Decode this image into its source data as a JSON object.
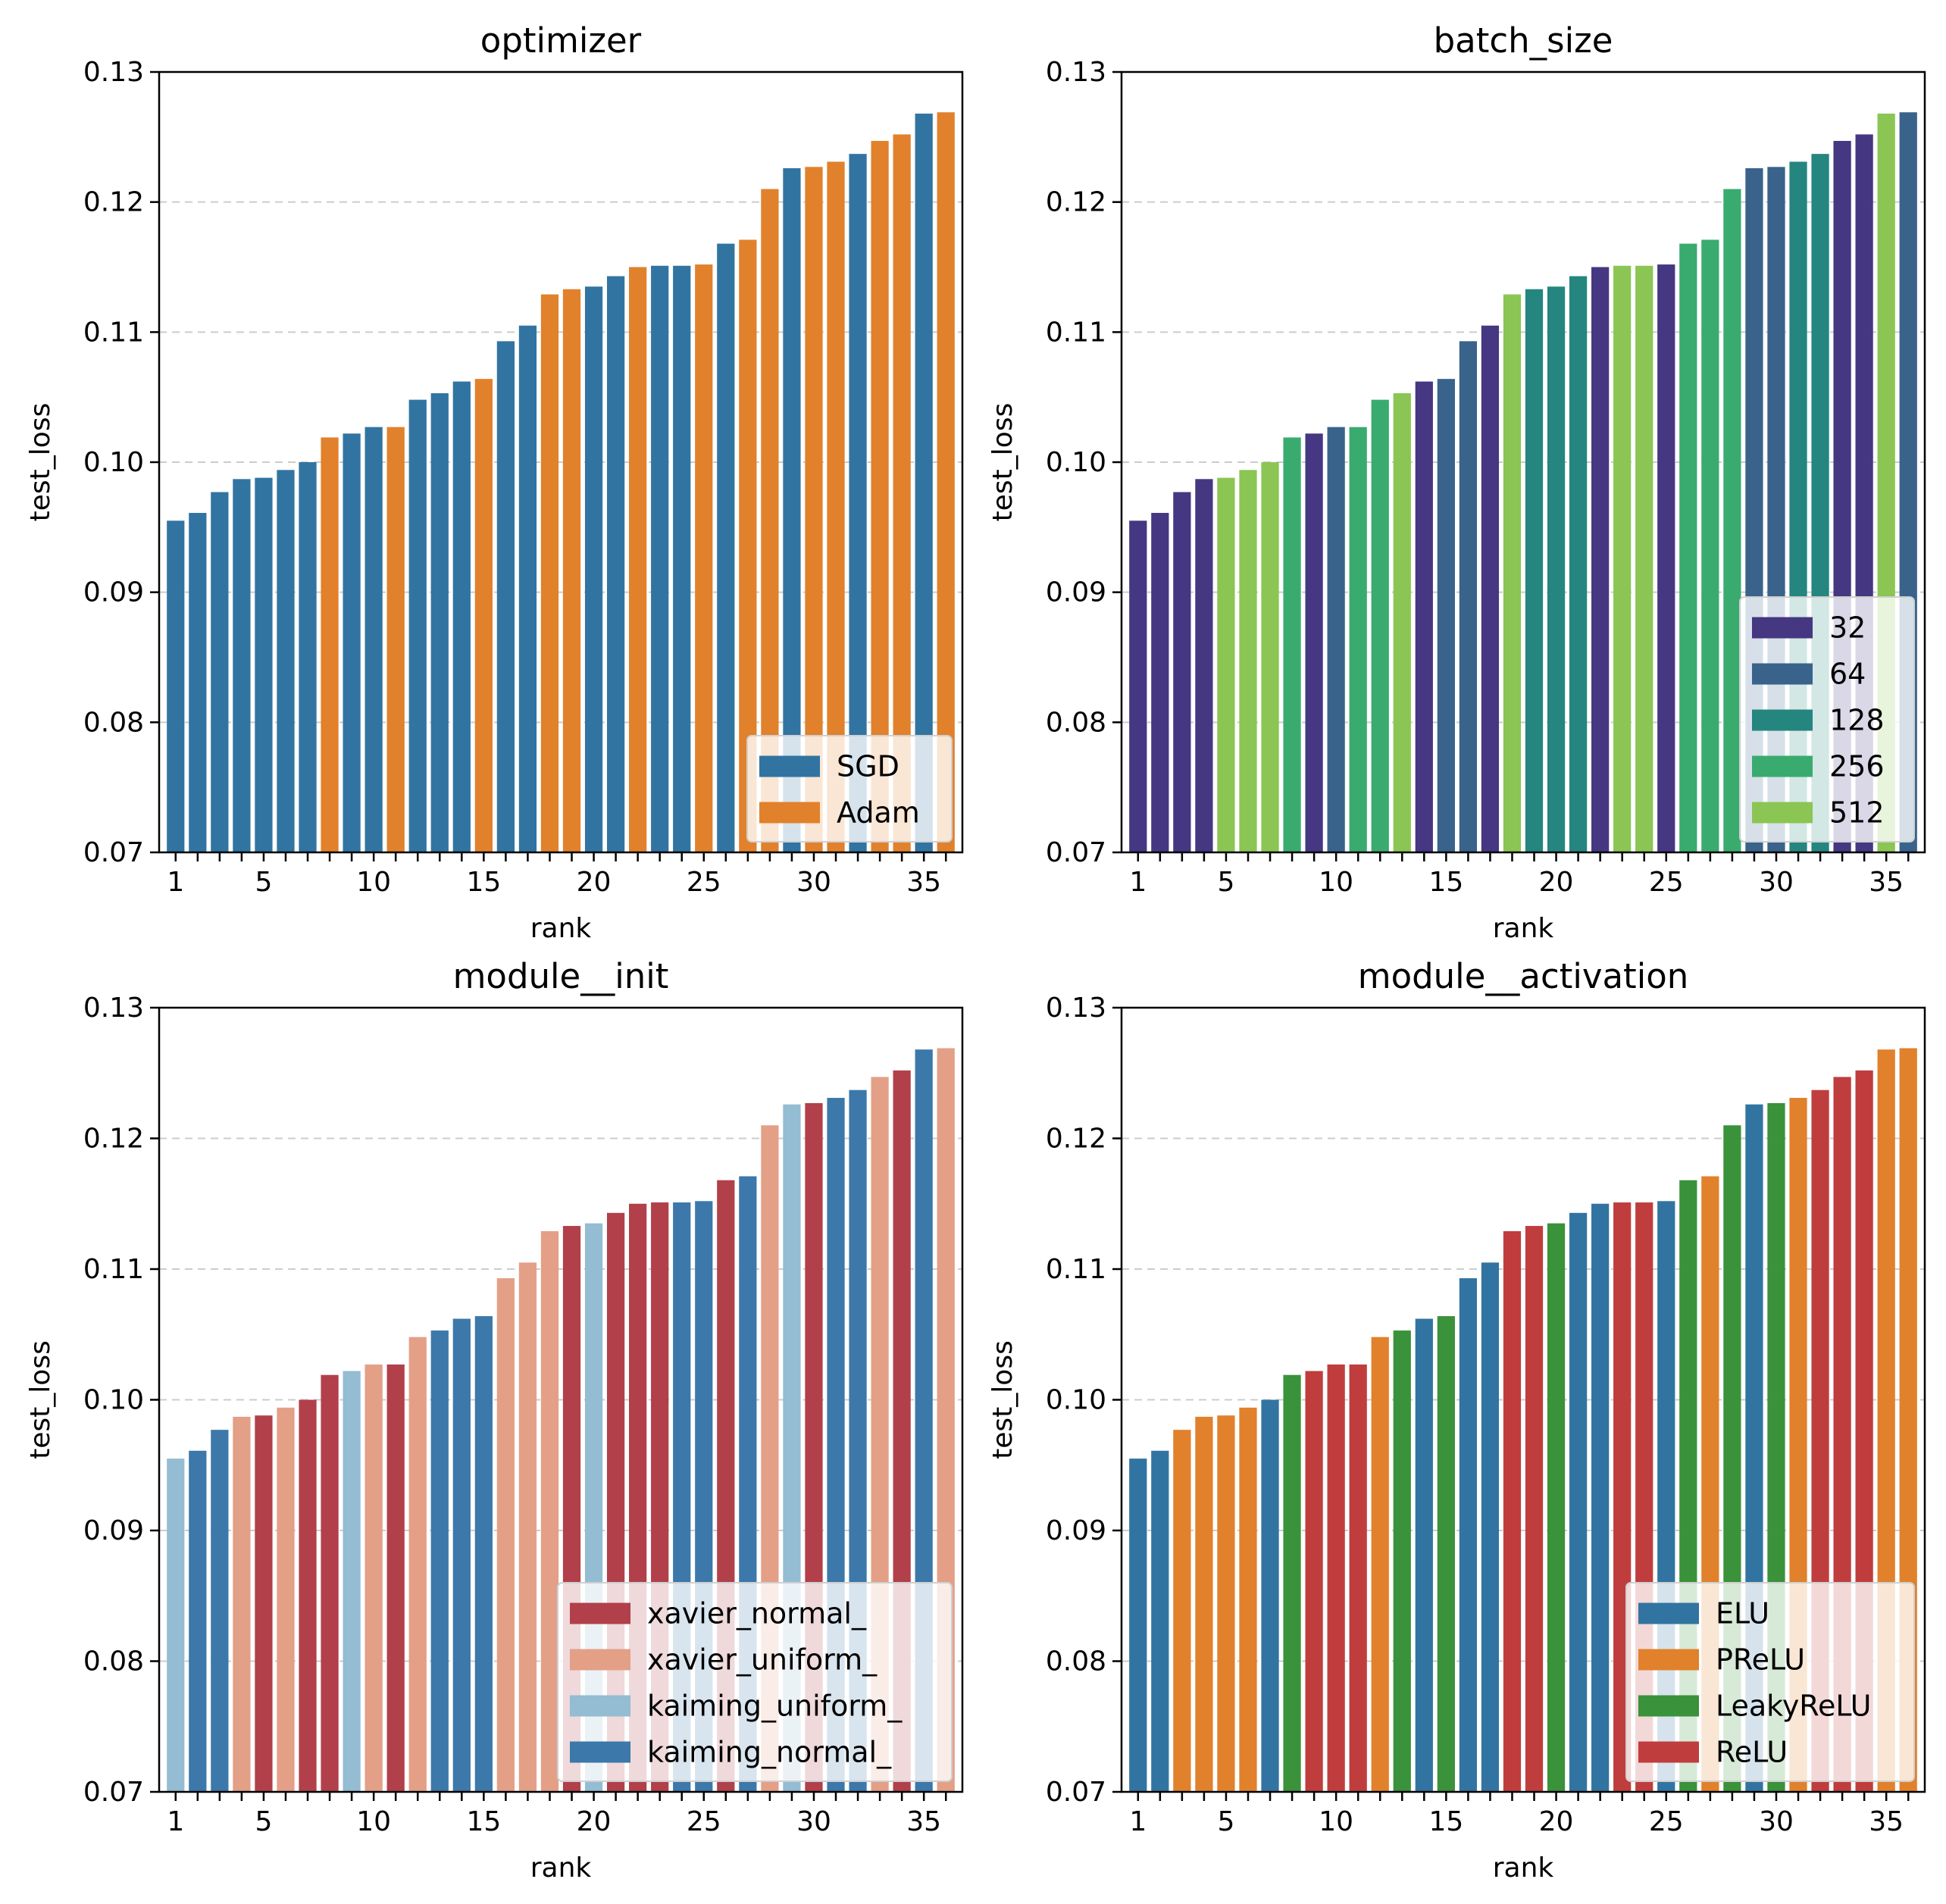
{
  "chart_data": [
    {
      "type": "bar",
      "title": "optimizer",
      "xlabel": "rank",
      "ylabel": "test_loss",
      "ylim": [
        0.07,
        0.13
      ],
      "yticks": [
        "0.07",
        "0.08",
        "0.09",
        "0.10",
        "0.11",
        "0.12",
        "0.13"
      ],
      "xtick_labels": [
        "1",
        "5",
        "10",
        "15",
        "20",
        "25",
        "30",
        "35"
      ],
      "grid": "y dashed",
      "legend_position": "lower right",
      "series": [
        {
          "name": "SGD",
          "color": "#3274a1"
        },
        {
          "name": "Adam",
          "color": "#e1812c"
        }
      ],
      "ranks": [
        1,
        2,
        3,
        4,
        5,
        6,
        7,
        8,
        9,
        10,
        11,
        12,
        13,
        14,
        15,
        16,
        17,
        18,
        19,
        20,
        21,
        22,
        23,
        24,
        25,
        26,
        27,
        28,
        29,
        30,
        31,
        32,
        33,
        34,
        35,
        36
      ],
      "values": [
        0.0955,
        0.0961,
        0.0977,
        0.0987,
        0.0988,
        0.0994,
        0.1,
        0.1019,
        0.1022,
        0.1027,
        0.1027,
        0.1048,
        0.1053,
        0.1062,
        0.1064,
        0.1093,
        0.1105,
        0.1129,
        0.1133,
        0.1135,
        0.1143,
        0.115,
        0.1151,
        0.1151,
        0.1152,
        0.1168,
        0.1171,
        0.121,
        0.1226,
        0.1227,
        0.1231,
        0.1237,
        0.1247,
        0.1252,
        0.1268,
        0.1269
      ],
      "groups": [
        "SGD",
        "SGD",
        "SGD",
        "SGD",
        "SGD",
        "SGD",
        "SGD",
        "Adam",
        "SGD",
        "SGD",
        "Adam",
        "SGD",
        "SGD",
        "SGD",
        "Adam",
        "SGD",
        "SGD",
        "Adam",
        "Adam",
        "SGD",
        "SGD",
        "Adam",
        "SGD",
        "SGD",
        "Adam",
        "SGD",
        "Adam",
        "Adam",
        "SGD",
        "Adam",
        "Adam",
        "SGD",
        "Adam",
        "Adam",
        "SGD",
        "Adam"
      ]
    },
    {
      "type": "bar",
      "title": "batch_size",
      "xlabel": "rank",
      "ylabel": "test_loss",
      "ylim": [
        0.07,
        0.13
      ],
      "yticks": [
        "0.07",
        "0.08",
        "0.09",
        "0.10",
        "0.11",
        "0.12",
        "0.13"
      ],
      "xtick_labels": [
        "1",
        "5",
        "10",
        "15",
        "20",
        "25",
        "30",
        "35"
      ],
      "grid": "y dashed",
      "legend_position": "lower right",
      "series": [
        {
          "name": "32",
          "color": "#453781"
        },
        {
          "name": "64",
          "color": "#39638b"
        },
        {
          "name": "128",
          "color": "#25857f"
        },
        {
          "name": "256",
          "color": "#3aab6f"
        },
        {
          "name": "512",
          "color": "#8bc553"
        }
      ],
      "ranks": [
        1,
        2,
        3,
        4,
        5,
        6,
        7,
        8,
        9,
        10,
        11,
        12,
        13,
        14,
        15,
        16,
        17,
        18,
        19,
        20,
        21,
        22,
        23,
        24,
        25,
        26,
        27,
        28,
        29,
        30,
        31,
        32,
        33,
        34,
        35,
        36
      ],
      "values": [
        0.0955,
        0.0961,
        0.0977,
        0.0987,
        0.0988,
        0.0994,
        0.1,
        0.1019,
        0.1022,
        0.1027,
        0.1027,
        0.1048,
        0.1053,
        0.1062,
        0.1064,
        0.1093,
        0.1105,
        0.1129,
        0.1133,
        0.1135,
        0.1143,
        0.115,
        0.1151,
        0.1151,
        0.1152,
        0.1168,
        0.1171,
        0.121,
        0.1226,
        0.1227,
        0.1231,
        0.1237,
        0.1247,
        0.1252,
        0.1268,
        0.1269
      ],
      "groups": [
        "32",
        "32",
        "32",
        "32",
        "512",
        "512",
        "512",
        "256",
        "32",
        "64",
        "256",
        "256",
        "512",
        "32",
        "64",
        "64",
        "32",
        "512",
        "128",
        "128",
        "128",
        "32",
        "512",
        "512",
        "32",
        "256",
        "256",
        "256",
        "64",
        "64",
        "128",
        "128",
        "32",
        "32",
        "512",
        "64"
      ]
    },
    {
      "type": "bar",
      "title": "module__init",
      "xlabel": "rank",
      "ylabel": "test_loss",
      "ylim": [
        0.07,
        0.13
      ],
      "yticks": [
        "0.07",
        "0.08",
        "0.09",
        "0.10",
        "0.11",
        "0.12",
        "0.13"
      ],
      "xtick_labels": [
        "1",
        "5",
        "10",
        "15",
        "20",
        "25",
        "30",
        "35"
      ],
      "grid": "y dashed",
      "legend_position": "lower right",
      "series": [
        {
          "name": "xavier_normal_",
          "color": "#b1404a"
        },
        {
          "name": "xavier_uniform_",
          "color": "#e3a087"
        },
        {
          "name": "kaiming_uniform_",
          "color": "#94bcd3"
        },
        {
          "name": "kaiming_normal_",
          "color": "#3c78aa"
        }
      ],
      "ranks": [
        1,
        2,
        3,
        4,
        5,
        6,
        7,
        8,
        9,
        10,
        11,
        12,
        13,
        14,
        15,
        16,
        17,
        18,
        19,
        20,
        21,
        22,
        23,
        24,
        25,
        26,
        27,
        28,
        29,
        30,
        31,
        32,
        33,
        34,
        35,
        36
      ],
      "values": [
        0.0955,
        0.0961,
        0.0977,
        0.0987,
        0.0988,
        0.0994,
        0.1,
        0.1019,
        0.1022,
        0.1027,
        0.1027,
        0.1048,
        0.1053,
        0.1062,
        0.1064,
        0.1093,
        0.1105,
        0.1129,
        0.1133,
        0.1135,
        0.1143,
        0.115,
        0.1151,
        0.1151,
        0.1152,
        0.1168,
        0.1171,
        0.121,
        0.1226,
        0.1227,
        0.1231,
        0.1237,
        0.1247,
        0.1252,
        0.1268,
        0.1269
      ],
      "groups": [
        "kaiming_uniform_",
        "kaiming_normal_",
        "kaiming_normal_",
        "xavier_uniform_",
        "xavier_normal_",
        "xavier_uniform_",
        "xavier_normal_",
        "xavier_normal_",
        "kaiming_uniform_",
        "xavier_uniform_",
        "xavier_normal_",
        "xavier_uniform_",
        "kaiming_normal_",
        "kaiming_normal_",
        "kaiming_normal_",
        "xavier_uniform_",
        "xavier_uniform_",
        "xavier_uniform_",
        "xavier_normal_",
        "kaiming_uniform_",
        "xavier_normal_",
        "xavier_normal_",
        "xavier_normal_",
        "kaiming_normal_",
        "kaiming_normal_",
        "xavier_normal_",
        "kaiming_normal_",
        "xavier_uniform_",
        "kaiming_uniform_",
        "xavier_normal_",
        "kaiming_normal_",
        "kaiming_normal_",
        "xavier_uniform_",
        "xavier_normal_",
        "kaiming_normal_",
        "xavier_uniform_"
      ]
    },
    {
      "type": "bar",
      "title": "module__activation",
      "xlabel": "rank",
      "ylabel": "test_loss",
      "ylim": [
        0.07,
        0.13
      ],
      "yticks": [
        "0.07",
        "0.08",
        "0.09",
        "0.10",
        "0.11",
        "0.12",
        "0.13"
      ],
      "xtick_labels": [
        "1",
        "5",
        "10",
        "15",
        "20",
        "25",
        "30",
        "35"
      ],
      "grid": "y dashed",
      "legend_position": "lower right",
      "series": [
        {
          "name": "ELU",
          "color": "#3274a1"
        },
        {
          "name": "PReLU",
          "color": "#e1812c"
        },
        {
          "name": "LeakyReLU",
          "color": "#3a923a"
        },
        {
          "name": "ReLU",
          "color": "#c03d3e"
        }
      ],
      "ranks": [
        1,
        2,
        3,
        4,
        5,
        6,
        7,
        8,
        9,
        10,
        11,
        12,
        13,
        14,
        15,
        16,
        17,
        18,
        19,
        20,
        21,
        22,
        23,
        24,
        25,
        26,
        27,
        28,
        29,
        30,
        31,
        32,
        33,
        34,
        35,
        36
      ],
      "values": [
        0.0955,
        0.0961,
        0.0977,
        0.0987,
        0.0988,
        0.0994,
        0.1,
        0.1019,
        0.1022,
        0.1027,
        0.1027,
        0.1048,
        0.1053,
        0.1062,
        0.1064,
        0.1093,
        0.1105,
        0.1129,
        0.1133,
        0.1135,
        0.1143,
        0.115,
        0.1151,
        0.1151,
        0.1152,
        0.1168,
        0.1171,
        0.121,
        0.1226,
        0.1227,
        0.1231,
        0.1237,
        0.1247,
        0.1252,
        0.1268,
        0.1269
      ],
      "groups": [
        "ELU",
        "ELU",
        "PReLU",
        "PReLU",
        "PReLU",
        "PReLU",
        "ELU",
        "LeakyReLU",
        "ReLU",
        "ReLU",
        "ReLU",
        "PReLU",
        "LeakyReLU",
        "ELU",
        "LeakyReLU",
        "ELU",
        "ELU",
        "ReLU",
        "ReLU",
        "LeakyReLU",
        "ELU",
        "ELU",
        "ReLU",
        "ReLU",
        "ELU",
        "LeakyReLU",
        "PReLU",
        "LeakyReLU",
        "ELU",
        "LeakyReLU",
        "PReLU",
        "ReLU",
        "ReLU",
        "ReLU",
        "PReLU",
        "PReLU"
      ]
    }
  ]
}
